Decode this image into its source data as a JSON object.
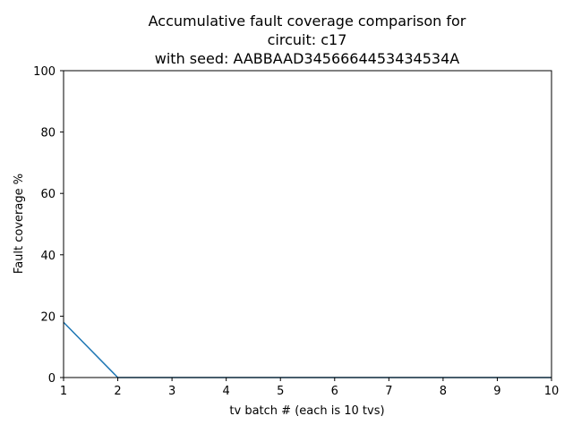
{
  "chart_data": {
    "type": "line",
    "title_lines": [
      "Accumulative fault coverage comparison for",
      "circuit:  c17",
      "with seed: AABBAAD3456664453434534A"
    ],
    "xlabel": "tv batch # (each is 10 tvs)",
    "ylabel": "Fault coverage %",
    "xlim": [
      1,
      10
    ],
    "ylim": [
      0,
      100
    ],
    "x_ticks": [
      1,
      2,
      3,
      4,
      5,
      6,
      7,
      8,
      9,
      10
    ],
    "y_ticks": [
      0,
      20,
      40,
      60,
      80,
      100
    ],
    "grid": false,
    "legend": "none",
    "series": [
      {
        "color": "#1f77b4",
        "x": [
          1,
          2,
          3,
          4,
          5,
          6,
          7,
          8,
          9,
          10
        ],
        "y": [
          18,
          0,
          0,
          0,
          0,
          0,
          0,
          0,
          0,
          0
        ]
      }
    ]
  }
}
